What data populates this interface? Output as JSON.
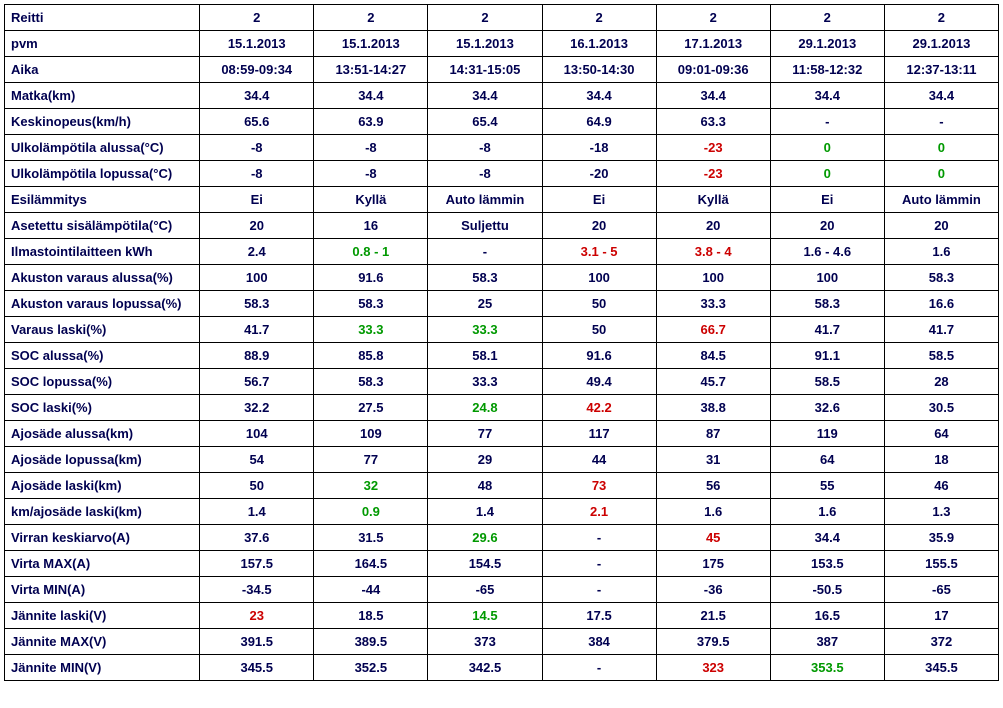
{
  "table": {
    "labels": [
      "Reitti",
      "pvm",
      "Aika",
      "Matka(km)",
      "Keskinopeus(km/h)",
      "Ulkolämpötila alussa(°C)",
      "Ulkolämpötila lopussa(°C)",
      "Esilämmitys",
      "Asetettu sisälämpötila(°C)",
      "Ilmastointilaitteen kWh",
      "Akuston varaus alussa(%)",
      "Akuston varaus lopussa(%)",
      "Varaus laski(%)",
      "SOC alussa(%)",
      "SOC lopussa(%)",
      "SOC laski(%)",
      "Ajosäde alussa(km)",
      "Ajosäde lopussa(km)",
      "Ajosäde laski(km)",
      "km/ajosäde laski(km)",
      "Virran keskiarvo(A)",
      "Virta MAX(A)",
      "Virta MIN(A)",
      "Jännite laski(V)",
      "Jännite MAX(V)",
      "Jännite MIN(V)"
    ],
    "rowBold": [
      true,
      true,
      true,
      true,
      true,
      true,
      true,
      true,
      true,
      true,
      true,
      true,
      true,
      true,
      true,
      true,
      true,
      true,
      true,
      true,
      true,
      true,
      true,
      true,
      true,
      true
    ],
    "cols": [
      {
        "vals": [
          "2",
          "15.1.2013",
          "08:59-09:34",
          "34.4",
          "65.6",
          "-8",
          "-8",
          "Ei",
          "20",
          "2.4",
          "100",
          "58.3",
          "41.7",
          "88.9",
          "56.7",
          "32.2",
          "104",
          "54",
          "50",
          "1.4",
          "37.6",
          "157.5",
          "-34.5",
          "23",
          "391.5",
          "345.5"
        ],
        "colors": [
          "",
          "",
          "",
          "",
          "",
          "",
          "",
          "",
          "",
          "",
          "",
          "",
          "",
          "",
          "",
          "",
          "",
          "",
          "",
          "",
          "",
          "",
          "",
          "red",
          "",
          ""
        ]
      },
      {
        "vals": [
          "2",
          "15.1.2013",
          "13:51-14:27",
          "34.4",
          "63.9",
          "-8",
          "-8",
          "Kyllä",
          "16",
          "0.8 - 1",
          "91.6",
          "58.3",
          "33.3",
          "85.8",
          "58.3",
          "27.5",
          "109",
          "77",
          "32",
          "0.9",
          "31.5",
          "164.5",
          "-44",
          "18.5",
          "389.5",
          "352.5"
        ],
        "colors": [
          "",
          "",
          "",
          "",
          "",
          "",
          "",
          "",
          "",
          "green",
          "",
          "",
          "green",
          "",
          "",
          "",
          "",
          "",
          "green",
          "green",
          "",
          "",
          "",
          "",
          "",
          ""
        ]
      },
      {
        "vals": [
          "2",
          "15.1.2013",
          "14:31-15:05",
          "34.4",
          "65.4",
          "-8",
          "-8",
          "Auto lämmin",
          "Suljettu",
          "-",
          "58.3",
          "25",
          "33.3",
          "58.1",
          "33.3",
          "24.8",
          "77",
          "29",
          "48",
          "1.4",
          "29.6",
          "154.5",
          "-65",
          "14.5",
          "373",
          "342.5"
        ],
        "colors": [
          "",
          "",
          "",
          "",
          "",
          "",
          "",
          "",
          "",
          "",
          "",
          "",
          "green",
          "",
          "",
          "green",
          "",
          "",
          "",
          "",
          "green",
          "",
          "",
          "green",
          "",
          ""
        ]
      },
      {
        "vals": [
          "2",
          "16.1.2013",
          "13:50-14:30",
          "34.4",
          "64.9",
          "-18",
          "-20",
          "Ei",
          "20",
          "3.1 - 5",
          "100",
          "50",
          "50",
          "91.6",
          "49.4",
          "42.2",
          "117",
          "44",
          "73",
          "2.1",
          "-",
          "-",
          "-",
          "17.5",
          "384",
          "-"
        ],
        "colors": [
          "",
          "",
          "",
          "",
          "",
          "",
          "",
          "",
          "",
          "red",
          "",
          "",
          "",
          "",
          "",
          "red",
          "",
          "",
          "red",
          "red",
          "",
          "",
          "",
          "",
          "",
          ""
        ]
      },
      {
        "vals": [
          "2",
          "17.1.2013",
          "09:01-09:36",
          "34.4",
          "63.3",
          "-23",
          "-23",
          "Kyllä",
          "20",
          "3.8 - 4",
          "100",
          "33.3",
          "66.7",
          "84.5",
          "45.7",
          "38.8",
          "87",
          "31",
          "56",
          "1.6",
          "45",
          "175",
          "-36",
          "21.5",
          "379.5",
          "323"
        ],
        "colors": [
          "",
          "",
          "",
          "",
          "",
          "red",
          "red",
          "",
          "",
          "red",
          "",
          "",
          "red",
          "",
          "",
          "",
          "",
          "",
          "",
          "",
          "red",
          "",
          "",
          "",
          "",
          "red"
        ]
      },
      {
        "vals": [
          "2",
          "29.1.2013",
          "11:58-12:32",
          "34.4",
          "-",
          "0",
          "0",
          "Ei",
          "20",
          "1.6 - 4.6",
          "100",
          "58.3",
          "41.7",
          "91.1",
          "58.5",
          "32.6",
          "119",
          "64",
          "55",
          "1.6",
          "34.4",
          "153.5",
          "-50.5",
          "16.5",
          "387",
          "353.5"
        ],
        "colors": [
          "",
          "",
          "",
          "",
          "",
          "green",
          "green",
          "",
          "",
          "",
          "",
          "",
          "",
          "",
          "",
          "",
          "",
          "",
          "",
          "",
          "",
          "",
          "",
          "",
          "",
          "green"
        ]
      },
      {
        "vals": [
          "2",
          "29.1.2013",
          "12:37-13:11",
          "34.4",
          "-",
          "0",
          "0",
          "Auto lämmin",
          "20",
          "1.6",
          "58.3",
          "16.6",
          "41.7",
          "58.5",
          "28",
          "30.5",
          "64",
          "18",
          "46",
          "1.3",
          "35.9",
          "155.5",
          "-65",
          "17",
          "372",
          "345.5"
        ],
        "colors": [
          "",
          "",
          "",
          "",
          "",
          "green",
          "green",
          "",
          "",
          "",
          "",
          "",
          "",
          "",
          "",
          "",
          "",
          "",
          "",
          "",
          "",
          "",
          "",
          "",
          "",
          ""
        ]
      }
    ]
  }
}
